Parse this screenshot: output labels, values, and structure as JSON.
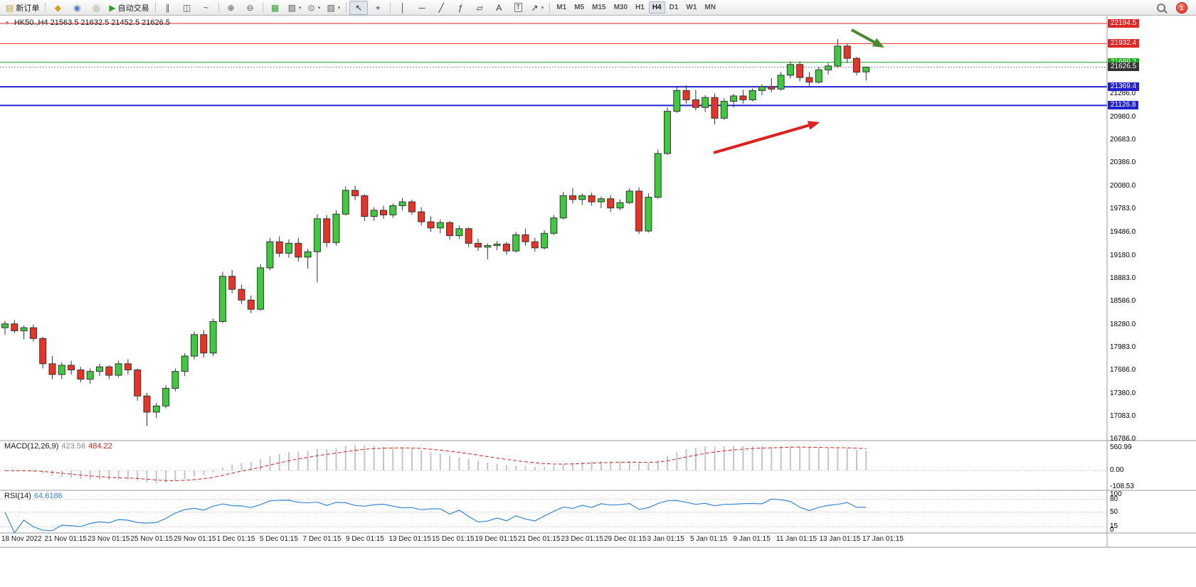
{
  "toolbar": {
    "dropdown_glyph": "▾",
    "notification_count": "1",
    "items": [
      {
        "name": "new-order",
        "glyph": "▤",
        "color": "#c9a227",
        "label": "新订单"
      },
      {
        "sep": true
      },
      {
        "name": "mql-market",
        "glyph": "◆",
        "color": "#d4a017"
      },
      {
        "name": "community",
        "glyph": "◉",
        "color": "#4a7ebb"
      },
      {
        "name": "info",
        "glyph": "◎",
        "color": "#8a8a8a"
      },
      {
        "name": "autotrade",
        "glyph": "▶",
        "color": "#2aa52a",
        "label": "自动交易"
      },
      {
        "sep": true
      },
      {
        "name": "bars-chart",
        "glyph": "∥",
        "color": "#555555"
      },
      {
        "name": "candles-chart",
        "glyph": "◫",
        "color": "#555555"
      },
      {
        "name": "line-chart",
        "glyph": "~",
        "color": "#555555"
      },
      {
        "sep": true
      },
      {
        "name": "zoom-in",
        "glyph": "⊕",
        "color": "#555555"
      },
      {
        "name": "zoom-out",
        "glyph": "⊖",
        "color": "#555555"
      },
      {
        "sep": true
      },
      {
        "name": "tile-windows",
        "glyph": "▦",
        "color": "#2aa52a"
      },
      {
        "name": "new-chart",
        "glyph": "▧",
        "color": "#555555",
        "dropdown": true
      },
      {
        "name": "profiles",
        "glyph": "⊙",
        "color": "#555555",
        "dropdown": true
      },
      {
        "name": "chart-settings",
        "glyph": "▨",
        "color": "#555555",
        "dropdown": true
      },
      {
        "sep": true
      },
      {
        "name": "cursor",
        "glyph": "↖",
        "color": "#333333",
        "pressed": true
      },
      {
        "name": "crosshair",
        "glyph": "+",
        "color": "#333333"
      },
      {
        "sep": true
      },
      {
        "name": "vertical-line",
        "glyph": "│",
        "color": "#333333"
      },
      {
        "name": "horizontal-line",
        "glyph": "─",
        "color": "#333333"
      },
      {
        "name": "trend-line",
        "glyph": "╱",
        "color": "#333333"
      },
      {
        "name": "fibonacci",
        "glyph": "ƒ",
        "color": "#333333"
      },
      {
        "name": "channel",
        "glyph": "▱",
        "color": "#333333"
      },
      {
        "name": "text",
        "glyph": "A",
        "color": "#333333"
      },
      {
        "name": "text-label",
        "glyph": "T",
        "color": "#333333",
        "boxed": true
      },
      {
        "name": "arrows-objects",
        "glyph": "↗",
        "color": "#333333",
        "dropdown": true
      },
      {
        "sep": true
      }
    ],
    "timeframes": [
      "M1",
      "M5",
      "M15",
      "M30",
      "H1",
      "H4",
      "D1",
      "W1",
      "MN"
    ],
    "active_timeframe": "H4"
  },
  "chart": {
    "title": "HK50.,H4 21563.5 21632.5 21452.5 21626.5",
    "one_click_icon": "▼"
  },
  "chart_data": {
    "type": "candlestick",
    "symbol": "HK50.",
    "period": "H4",
    "ohlc_current": {
      "open": 21563.5,
      "high": 21632.5,
      "low": 21452.5,
      "close": 21626.5
    },
    "price_range": [
      16786.0,
      22194.5
    ],
    "up_color": "#3dcb3d",
    "down_color": "#ee3124",
    "outline_color": "#333333",
    "candles": [
      [
        18230,
        18320,
        18140,
        18280
      ],
      [
        18280,
        18330,
        18160,
        18190
      ],
      [
        18190,
        18260,
        18080,
        18230
      ],
      [
        18230,
        18270,
        18050,
        18090
      ],
      [
        18090,
        18110,
        17700,
        17760
      ],
      [
        17760,
        17860,
        17560,
        17620
      ],
      [
        17620,
        17780,
        17560,
        17740
      ],
      [
        17740,
        17800,
        17620,
        17680
      ],
      [
        17680,
        17720,
        17520,
        17560
      ],
      [
        17560,
        17700,
        17500,
        17660
      ],
      [
        17660,
        17760,
        17600,
        17720
      ],
      [
        17720,
        17740,
        17560,
        17610
      ],
      [
        17610,
        17800,
        17580,
        17760
      ],
      [
        17760,
        17820,
        17620,
        17680
      ],
      [
        17680,
        17700,
        17280,
        17340
      ],
      [
        17340,
        17380,
        16950,
        17130
      ],
      [
        17130,
        17250,
        17050,
        17210
      ],
      [
        17210,
        17480,
        17180,
        17440
      ],
      [
        17440,
        17700,
        17400,
        17660
      ],
      [
        17660,
        17900,
        17600,
        17860
      ],
      [
        17860,
        18180,
        17820,
        18140
      ],
      [
        18140,
        18200,
        17840,
        17900
      ],
      [
        17900,
        18350,
        17860,
        18310
      ],
      [
        18310,
        18960,
        18290,
        18900
      ],
      [
        18900,
        18980,
        18680,
        18730
      ],
      [
        18730,
        18790,
        18540,
        18590
      ],
      [
        18590,
        18650,
        18420,
        18470
      ],
      [
        18470,
        19060,
        18450,
        19010
      ],
      [
        19010,
        19400,
        18980,
        19350
      ],
      [
        19350,
        19420,
        19150,
        19200
      ],
      [
        19200,
        19380,
        19140,
        19330
      ],
      [
        19330,
        19400,
        19090,
        19150
      ],
      [
        19150,
        19260,
        19000,
        19220
      ],
      [
        19220,
        19710,
        18820,
        19650
      ],
      [
        19650,
        19700,
        19280,
        19340
      ],
      [
        19340,
        19760,
        19300,
        19710
      ],
      [
        19710,
        20070,
        19690,
        20020
      ],
      [
        20020,
        20080,
        19890,
        19950
      ],
      [
        19950,
        19970,
        19620,
        19680
      ],
      [
        19680,
        19800,
        19620,
        19760
      ],
      [
        19760,
        19820,
        19650,
        19700
      ],
      [
        19700,
        19850,
        19660,
        19820
      ],
      [
        19820,
        19920,
        19760,
        19870
      ],
      [
        19870,
        19900,
        19700,
        19740
      ],
      [
        19740,
        19800,
        19560,
        19610
      ],
      [
        19610,
        19680,
        19480,
        19530
      ],
      [
        19530,
        19640,
        19460,
        19600
      ],
      [
        19600,
        19620,
        19380,
        19430
      ],
      [
        19430,
        19560,
        19390,
        19520
      ],
      [
        19520,
        19540,
        19280,
        19330
      ],
      [
        19330,
        19390,
        19230,
        19280
      ],
      [
        19280,
        19330,
        19120,
        19300
      ],
      [
        19300,
        19360,
        19240,
        19320
      ],
      [
        19320,
        19350,
        19180,
        19230
      ],
      [
        19230,
        19480,
        19210,
        19440
      ],
      [
        19440,
        19520,
        19300,
        19350
      ],
      [
        19350,
        19400,
        19220,
        19270
      ],
      [
        19270,
        19500,
        19250,
        19460
      ],
      [
        19460,
        19700,
        19440,
        19660
      ],
      [
        19660,
        20000,
        19640,
        19950
      ],
      [
        19950,
        20050,
        19850,
        19900
      ],
      [
        19900,
        19980,
        19830,
        19950
      ],
      [
        19950,
        19990,
        19820,
        19870
      ],
      [
        19870,
        19940,
        19790,
        19910
      ],
      [
        19910,
        19960,
        19740,
        19790
      ],
      [
        19790,
        19900,
        19760,
        19860
      ],
      [
        19860,
        20050,
        19840,
        20010
      ],
      [
        20010,
        20060,
        19450,
        19490
      ],
      [
        19490,
        19980,
        19470,
        19930
      ],
      [
        19930,
        20550,
        19910,
        20500
      ],
      [
        20500,
        21100,
        20480,
        21050
      ],
      [
        21050,
        21380,
        21030,
        21320
      ],
      [
        21320,
        21390,
        21150,
        21200
      ],
      [
        21200,
        21330,
        21060,
        21100
      ],
      [
        21100,
        21260,
        21040,
        21230
      ],
      [
        21230,
        21280,
        20880,
        20960
      ],
      [
        20960,
        21220,
        20940,
        21180
      ],
      [
        21180,
        21280,
        21100,
        21250
      ],
      [
        21250,
        21330,
        21150,
        21200
      ],
      [
        21200,
        21350,
        21180,
        21320
      ],
      [
        21320,
        21400,
        21260,
        21370
      ],
      [
        21370,
        21480,
        21300,
        21340
      ],
      [
        21340,
        21560,
        21320,
        21520
      ],
      [
        21520,
        21700,
        21480,
        21660
      ],
      [
        21660,
        21700,
        21440,
        21490
      ],
      [
        21490,
        21560,
        21380,
        21430
      ],
      [
        21430,
        21630,
        21410,
        21590
      ],
      [
        21590,
        21680,
        21530,
        21640
      ],
      [
        21640,
        21990,
        21620,
        21900
      ],
      [
        21900,
        21930,
        21680,
        21740
      ],
      [
        21740,
        21760,
        21520,
        21560
      ],
      [
        21563.5,
        21632.5,
        21452.5,
        21626.5
      ]
    ],
    "hlines": [
      {
        "price": 22194.5,
        "color": "#e02525",
        "width": 1
      },
      {
        "price": 21932.4,
        "color": "#e02525",
        "width": 1
      },
      {
        "price": 21689.2,
        "color": "#18a818",
        "width": 1
      },
      {
        "price": 21626.5,
        "color": "#888888",
        "width": 1,
        "dash": "2,2"
      },
      {
        "price": 21369.4,
        "color": "#2020d0",
        "width": 2
      },
      {
        "price": 21126.8,
        "color": "#2020d0",
        "width": 2
      }
    ],
    "arrows": [
      {
        "name": "red-trend-arrow",
        "color": "#dd2020",
        "from": [
          1003,
          215
        ],
        "to": [
          1152,
          172
        ],
        "width": 4
      },
      {
        "name": "green-down-arrow",
        "color": "#4a8a2a",
        "from": [
          1197,
          42
        ],
        "to": [
          1243,
          67
        ],
        "width": 4
      }
    ],
    "y_tags": [
      {
        "value": "22194.5",
        "bg": "#e02525"
      },
      {
        "value": "21932.4",
        "bg": "#e02525"
      },
      {
        "value": "21689.2",
        "bg": "#18a818"
      },
      {
        "value": "21626.5",
        "bg": "#333333"
      },
      {
        "value": "21369.4",
        "bg": "#2020d0"
      },
      {
        "value": "21126.8",
        "bg": "#2020d0"
      }
    ],
    "y_ticks": [
      "21286.0",
      "20980.0",
      "20683.0",
      "20386.0",
      "20080.0",
      "19783.0",
      "19486.0",
      "19180.0",
      "18883.0",
      "18586.0",
      "18280.0",
      "17983.0",
      "17686.0",
      "17380.0",
      "17083.0",
      "16786.0"
    ],
    "x_labels": [
      "18 Nov 2022",
      "21 Nov 01:15",
      "23 Nov 01:15",
      "25 Nov 01:15",
      "29 Nov 01:15",
      "1 Dec 01:15",
      "5 Dec 01:15",
      "7 Dec 01:15",
      "9 Dec 01:15",
      "13 Dec 01:15",
      "15 Dec 01:15",
      "19 Dec 01:15",
      "21 Dec 01:15",
      "23 Dec 01:15",
      "29 Dec 01:15",
      "3 Jan 01:15",
      "5 Jan 01:15",
      "9 Jan 01:15",
      "11 Jan 01:15",
      "13 Jan 01:15",
      "17 Jan 01:15"
    ]
  },
  "macd": {
    "name": "MACD(12,26,9)",
    "main_value": "423.56",
    "signal_value": "484.22",
    "fast": 12,
    "slow": 26,
    "signal": 9,
    "axis_max": "560.99",
    "axis_zero": "0.00",
    "axis_min": "-108.53",
    "histogram_color": "#c4c4c4",
    "signal_color": "#d02020"
  },
  "rsi": {
    "name": "RSI(14)",
    "value": "64.6186",
    "period": 14,
    "axis": [
      "100",
      "80",
      "50",
      "15",
      "0"
    ],
    "levels": [
      80,
      50,
      15
    ],
    "line_color": "#3a86d4"
  }
}
